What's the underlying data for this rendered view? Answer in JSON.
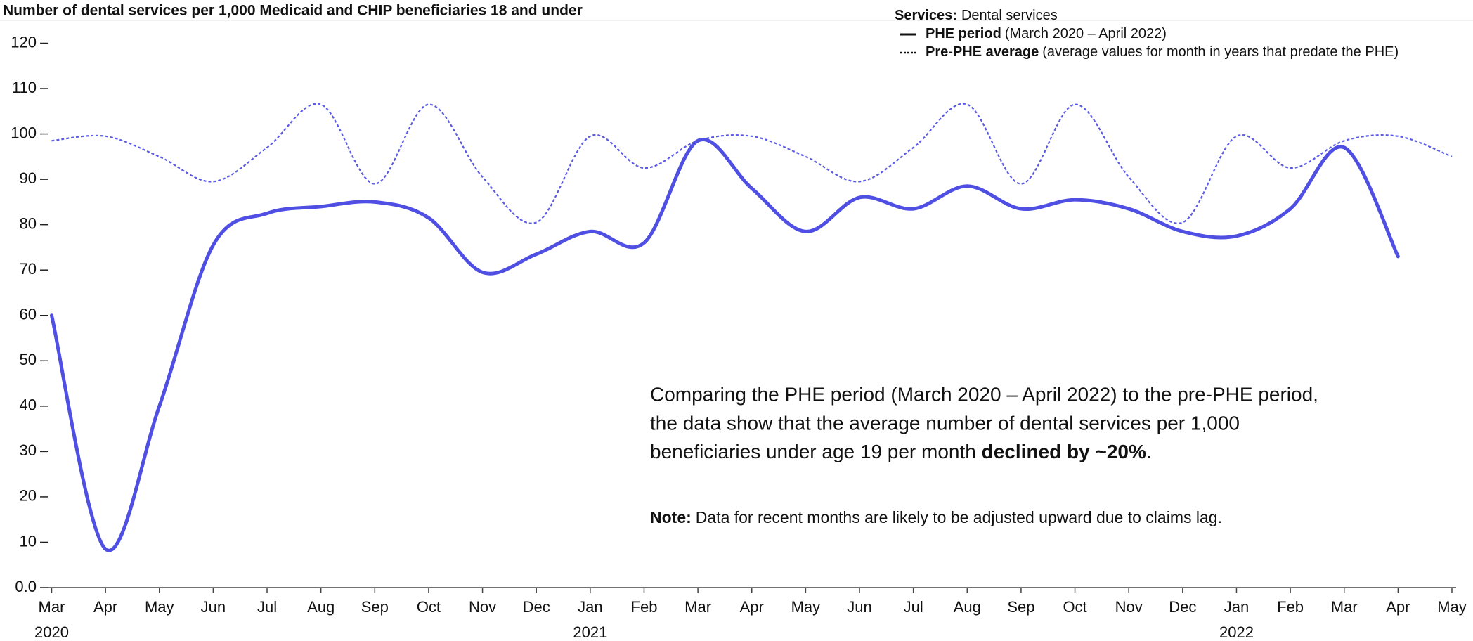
{
  "chart_data": {
    "type": "line",
    "title": "Number of dental services per 1,000 Medicaid and CHIP beneficiaries 18 and under",
    "categories": [
      "Mar",
      "Apr",
      "May",
      "Jun",
      "Jul",
      "Aug",
      "Sep",
      "Oct",
      "Nov",
      "Dec",
      "Jan",
      "Feb",
      "Mar",
      "Apr",
      "May",
      "Jun",
      "Jul",
      "Aug",
      "Sep",
      "Oct",
      "Nov",
      "Dec",
      "Jan",
      "Feb",
      "Mar",
      "Apr",
      "May"
    ],
    "category_years": [
      "2020",
      null,
      null,
      null,
      null,
      null,
      null,
      null,
      null,
      null,
      "2021",
      null,
      null,
      null,
      null,
      null,
      null,
      null,
      null,
      null,
      null,
      null,
      "2022",
      null,
      null,
      null,
      null
    ],
    "ylim": [
      0,
      120
    ],
    "yticks": [
      {
        "value": 0,
        "label": "0.0"
      },
      10,
      20,
      30,
      40,
      50,
      60,
      70,
      80,
      90,
      100,
      110,
      120
    ],
    "legend": {
      "title": "Services:",
      "subtitle": "Dental services",
      "position": "top-right"
    },
    "series": [
      {
        "name": "PHE period",
        "description": "(March 2020 – April 2022)",
        "color": "#4f4fe3",
        "style": "solid",
        "values": [
          60,
          8.5,
          40,
          75.5,
          82.5,
          84,
          85,
          81.5,
          69.5,
          73.5,
          78.5,
          76,
          98.5,
          88,
          78.5,
          86,
          83.5,
          88.5,
          83.5,
          85.5,
          83.5,
          78.5,
          77.5,
          83.5,
          97,
          73,
          null
        ]
      },
      {
        "name": "Pre-PHE average",
        "description": "(average values for month in years that predate the PHE)",
        "color": "#5b5be6",
        "style": "dotted",
        "values": [
          98.5,
          99.5,
          95,
          89.5,
          97,
          106.5,
          89,
          106.5,
          90.5,
          80.5,
          99.5,
          92.5,
          98.5,
          99.5,
          95,
          89.5,
          97,
          106.5,
          89,
          106.5,
          90.5,
          80.5,
          99.5,
          92.5,
          98.5,
          99.5,
          95
        ]
      }
    ],
    "annotation": {
      "lines": [
        "Comparing the PHE period (March 2020 – April 2022) to the pre-PHE period,",
        "the data show that the average number of dental services per 1,000"
      ],
      "last_line": [
        "beneficiaries under age 19 per month ",
        "declined by ~20%",
        "."
      ]
    },
    "note": {
      "label": "Note:",
      "text": "Data for recent months are likely to be adjusted upward due to claims lag."
    }
  }
}
